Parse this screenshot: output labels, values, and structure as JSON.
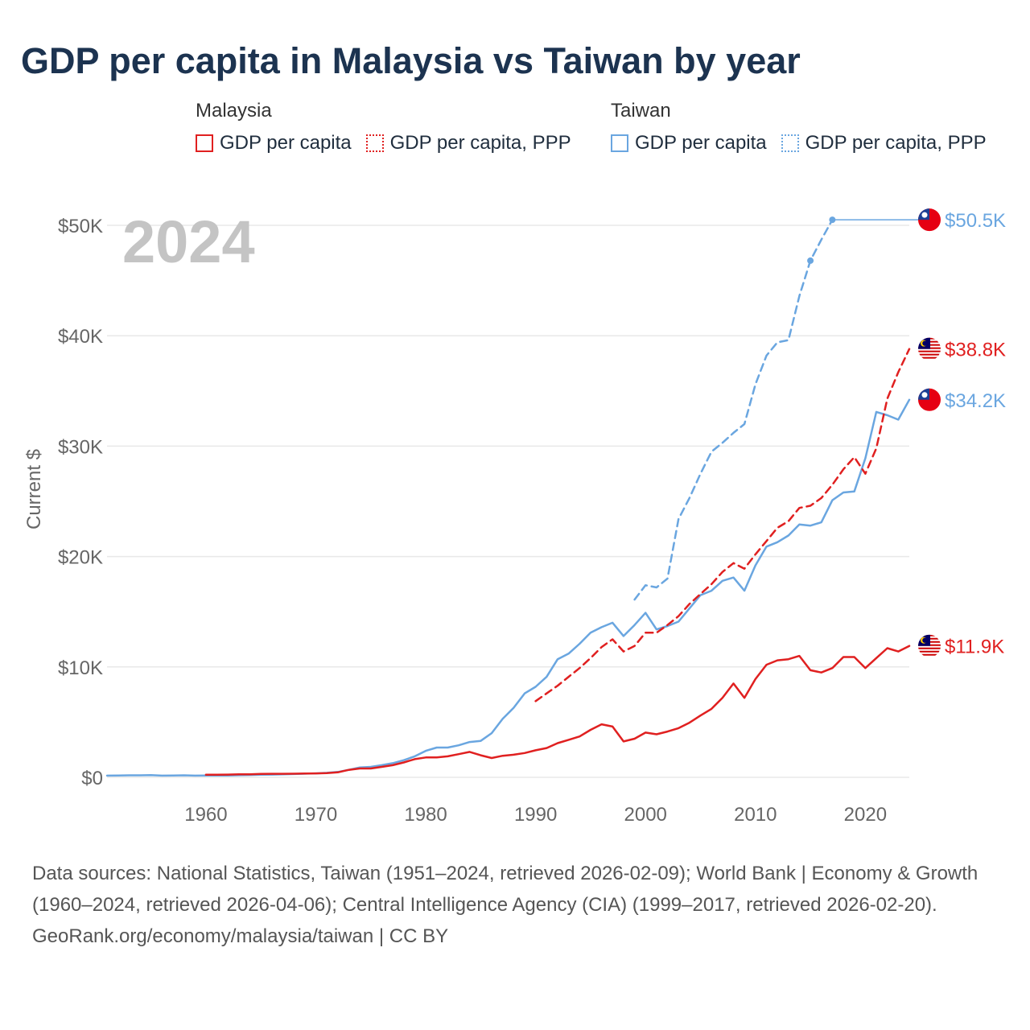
{
  "title": "GDP per capita in Malaysia vs Taiwan by year",
  "legend": {
    "groups": [
      {
        "name": "Malaysia",
        "items": [
          "GDP per capita",
          "GDP per capita, PPP"
        ]
      },
      {
        "name": "Taiwan",
        "items": [
          "GDP per capita",
          "GDP per capita, PPP"
        ]
      }
    ]
  },
  "colors": {
    "malaysia": "#e02020",
    "taiwan": "#6aa6e0",
    "grid": "#e8e8e8",
    "year": "#c4c4c4"
  },
  "footer": {
    "sources": "Data sources: National Statistics, Taiwan (1951–2024, retrieved 2026-02-09); World Bank | Economy & Growth (1960–2024, retrieved 2026-04-06); Central Intelligence Agency (CIA) (1999–2017, retrieved 2026-02-20).",
    "credit": "GeoRank.org/economy/malaysia/taiwan | CC BY"
  },
  "chart_data": {
    "type": "line",
    "year_label": "2024",
    "ylabel": "Current $",
    "xlim": [
      1951,
      2024
    ],
    "ylim": [
      0,
      50000
    ],
    "x_ticks": [
      1960,
      1970,
      1980,
      1990,
      2000,
      2010,
      2020
    ],
    "y_ticks": [
      {
        "value": 0,
        "label": "$0"
      },
      {
        "value": 10000,
        "label": "$10K"
      },
      {
        "value": 20000,
        "label": "$20K"
      },
      {
        "value": 30000,
        "label": "$30K"
      },
      {
        "value": 40000,
        "label": "$40K"
      },
      {
        "value": 50000,
        "label": "$50K"
      }
    ],
    "series": [
      {
        "name": "Taiwan GDP per capita",
        "country": "taiwan",
        "style": "solid",
        "end_label": "$34.2K",
        "x": [
          1951,
          1952,
          1953,
          1954,
          1955,
          1956,
          1957,
          1958,
          1959,
          1960,
          1961,
          1962,
          1963,
          1964,
          1965,
          1966,
          1967,
          1968,
          1969,
          1970,
          1971,
          1972,
          1973,
          1974,
          1975,
          1976,
          1977,
          1978,
          1979,
          1980,
          1981,
          1982,
          1983,
          1984,
          1985,
          1986,
          1987,
          1988,
          1989,
          1990,
          1991,
          1992,
          1993,
          1994,
          1995,
          1996,
          1997,
          1998,
          1999,
          2000,
          2001,
          2002,
          2003,
          2004,
          2005,
          2006,
          2007,
          2008,
          2009,
          2010,
          2011,
          2012,
          2013,
          2014,
          2015,
          2016,
          2017,
          2018,
          2019,
          2020,
          2021,
          2022,
          2023,
          2024
        ],
        "values": [
          150,
          170,
          180,
          180,
          200,
          150,
          160,
          180,
          150,
          160,
          160,
          170,
          190,
          210,
          230,
          250,
          280,
          300,
          330,
          360,
          410,
          490,
          680,
          900,
          950,
          1100,
          1280,
          1550,
          1900,
          2400,
          2700,
          2700,
          2900,
          3200,
          3300,
          4000,
          5300,
          6300,
          7600,
          8200,
          9100,
          10700,
          11200,
          12100,
          13100,
          13600,
          14000,
          12800,
          13800,
          14900,
          13400,
          13700,
          14100,
          15300,
          16500,
          16900,
          17800,
          18100,
          16900,
          19200,
          20900,
          21300,
          21900,
          22900,
          22800,
          23100,
          25100,
          25800,
          25900,
          28900,
          33100,
          32800,
          32400,
          34200
        ]
      },
      {
        "name": "Malaysia GDP per capita",
        "country": "malaysia",
        "style": "solid",
        "end_label": "$11.9K",
        "x": [
          1960,
          1961,
          1962,
          1963,
          1964,
          1965,
          1966,
          1967,
          1968,
          1969,
          1970,
          1971,
          1972,
          1973,
          1974,
          1975,
          1976,
          1977,
          1978,
          1979,
          1980,
          1981,
          1982,
          1983,
          1984,
          1985,
          1986,
          1987,
          1988,
          1989,
          1990,
          1991,
          1992,
          1993,
          1994,
          1995,
          1996,
          1997,
          1998,
          1999,
          2000,
          2001,
          2002,
          2003,
          2004,
          2005,
          2006,
          2007,
          2008,
          2009,
          2010,
          2011,
          2012,
          2013,
          2014,
          2015,
          2016,
          2017,
          2018,
          2019,
          2020,
          2021,
          2022,
          2023,
          2024
        ],
        "values": [
          240,
          240,
          250,
          270,
          280,
          310,
          320,
          320,
          330,
          340,
          360,
          380,
          450,
          680,
          800,
          800,
          950,
          1100,
          1350,
          1650,
          1800,
          1800,
          1900,
          2100,
          2300,
          2000,
          1750,
          1950,
          2050,
          2200,
          2450,
          2650,
          3100,
          3400,
          3700,
          4300,
          4800,
          4600,
          3250,
          3500,
          4050,
          3900,
          4150,
          4450,
          4950,
          5600,
          6200,
          7200,
          8500,
          7200,
          8900,
          10200,
          10600,
          10700,
          11000,
          9700,
          9500,
          9900,
          10900,
          10900,
          9900,
          10800,
          11700,
          11400,
          11900
        ]
      },
      {
        "name": "Malaysia GDP per capita, PPP",
        "country": "malaysia",
        "style": "dashed",
        "end_label": "$38.8K",
        "x": [
          1990,
          1991,
          1992,
          1993,
          1994,
          1995,
          1996,
          1997,
          1998,
          1999,
          2000,
          2001,
          2002,
          2003,
          2004,
          2005,
          2006,
          2007,
          2008,
          2009,
          2010,
          2011,
          2012,
          2013,
          2014,
          2015,
          2016,
          2017,
          2018,
          2019,
          2020,
          2021,
          2022,
          2023,
          2024
        ],
        "values": [
          6900,
          7600,
          8300,
          9100,
          9900,
          10800,
          11800,
          12500,
          11400,
          11900,
          13100,
          13100,
          13800,
          14600,
          15700,
          16600,
          17500,
          18600,
          19400,
          18900,
          20200,
          21400,
          22600,
          23200,
          24400,
          24600,
          25300,
          26500,
          27900,
          29000,
          27500,
          29800,
          34300,
          36700,
          38800
        ]
      },
      {
        "name": "Taiwan GDP per capita, PPP",
        "country": "taiwan",
        "style": "dashed",
        "end_label": "$50.5K",
        "x": [
          1999,
          2000,
          2001,
          2002,
          2003,
          2004,
          2005,
          2006,
          2007,
          2008,
          2009,
          2010,
          2011,
          2012,
          2013,
          2014,
          2015,
          2016,
          2017
        ],
        "values": [
          16100,
          17400,
          17200,
          18000,
          23400,
          25300,
          27500,
          29500,
          30300,
          31200,
          32000,
          35600,
          38200,
          39400,
          39600,
          43600,
          46800,
          48700,
          50500
        ],
        "markers_at": [
          2015,
          2017
        ]
      }
    ]
  }
}
